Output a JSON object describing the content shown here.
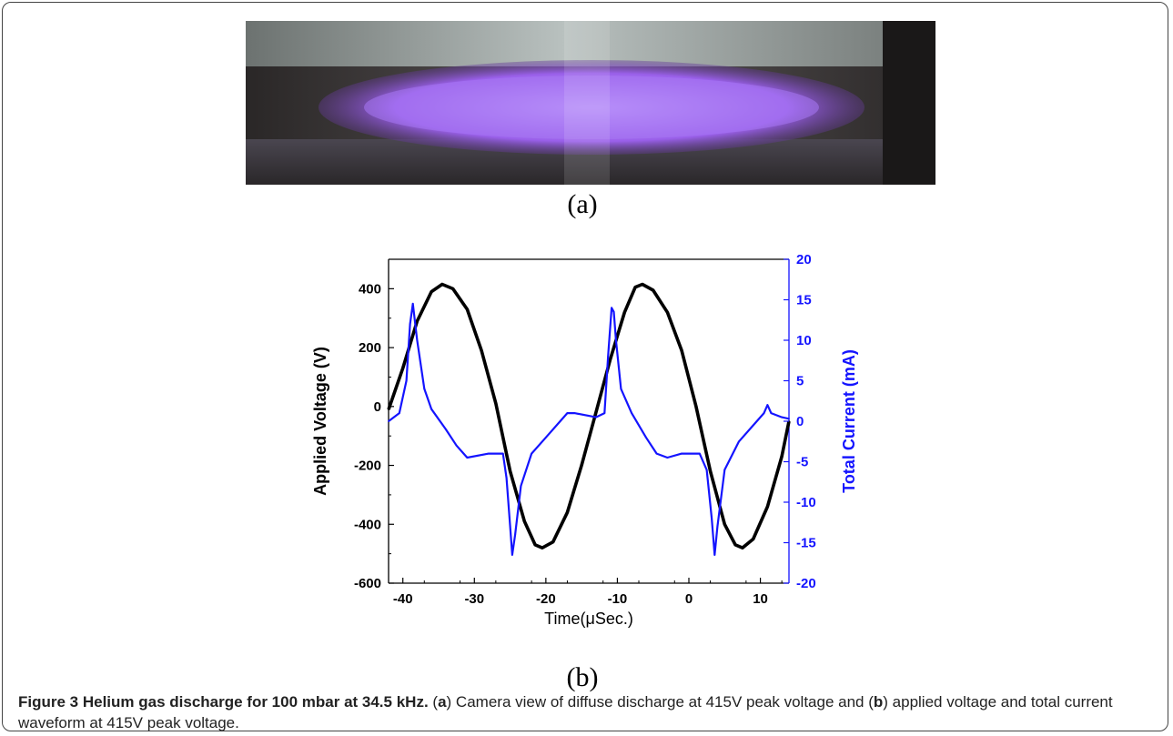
{
  "figure": {
    "photo_label": "(a)",
    "chart_label": "(b)",
    "caption": {
      "title": "Figure 3 Helium gas discharge for 100 mbar at 34.5 kHz.",
      "p1": "(",
      "a": "a",
      "p2": ") Camera view of diffuse discharge at 415V peak voltage and (",
      "b": "b",
      "p3": ") applied voltage and total current waveform at 415V peak voltage."
    }
  },
  "colors": {
    "voltage": "#000000",
    "current": "#1414ff",
    "right_axis": "#1414ff"
  },
  "chart_data": {
    "type": "line",
    "xlabel": "Time(μSec.)",
    "ylabel": "Applied Voltage (V)",
    "y2label": "Total Current (mA)",
    "xlim": [
      -42,
      14
    ],
    "ylim": [
      -600,
      500
    ],
    "y2lim": [
      -20,
      20
    ],
    "xticks": [
      "-40",
      "-30",
      "-20",
      "-10",
      "0",
      "10"
    ],
    "yticks": [
      "-600",
      "-400",
      "-200",
      "0",
      "200",
      "400"
    ],
    "y2ticks": [
      "-20",
      "-15",
      "-10",
      "-5",
      "0",
      "5",
      "10",
      "15",
      "20"
    ],
    "series": [
      {
        "axis": "left",
        "color": "#000000",
        "x": [
          -42,
          -40,
          -38,
          -36,
          -34.5,
          -33,
          -31,
          -29,
          -27,
          -25,
          -23,
          -21.5,
          -20.5,
          -19,
          -17,
          -15,
          -13,
          -11,
          -9,
          -7.5,
          -6.5,
          -5,
          -3,
          -1,
          1,
          3,
          5,
          6.5,
          7.5,
          9,
          11,
          13,
          14
        ],
        "y": [
          -10,
          130,
          290,
          390,
          415,
          400,
          330,
          190,
          10,
          -220,
          -390,
          -470,
          -480,
          -460,
          -360,
          -200,
          -20,
          160,
          320,
          405,
          415,
          395,
          320,
          190,
          0,
          -220,
          -400,
          -470,
          -480,
          -450,
          -340,
          -170,
          -50
        ]
      },
      {
        "axis": "right",
        "color": "#1414ff",
        "x": [
          -42,
          -40.5,
          -39.5,
          -39,
          -38.6,
          -38,
          -37,
          -36,
          -34,
          -32.5,
          -31,
          -28,
          -26,
          -25.5,
          -25,
          -24.7,
          -24.3,
          -23.5,
          -22,
          -20,
          -18,
          -17,
          -16,
          -13,
          -11.8,
          -11.3,
          -10.8,
          -10.5,
          -10.2,
          -9.5,
          -8,
          -6,
          -4.5,
          -3,
          -1,
          1.5,
          2.5,
          3.2,
          3.6,
          4,
          5,
          7,
          9,
          10.5,
          11,
          11.5,
          13,
          14
        ],
        "y": [
          0,
          1,
          5,
          12,
          14.5,
          10,
          4,
          1.5,
          -1,
          -3,
          -4.5,
          -4,
          -4,
          -7,
          -13,
          -16.5,
          -14,
          -8,
          -4,
          -2,
          0,
          1,
          1,
          0.5,
          1,
          8,
          14,
          13.5,
          10,
          4,
          1,
          -2,
          -4,
          -4.5,
          -4,
          -4,
          -6,
          -12,
          -16.5,
          -13,
          -6,
          -2.5,
          -0.5,
          1,
          2,
          1,
          0.5,
          0.3
        ]
      }
    ]
  }
}
